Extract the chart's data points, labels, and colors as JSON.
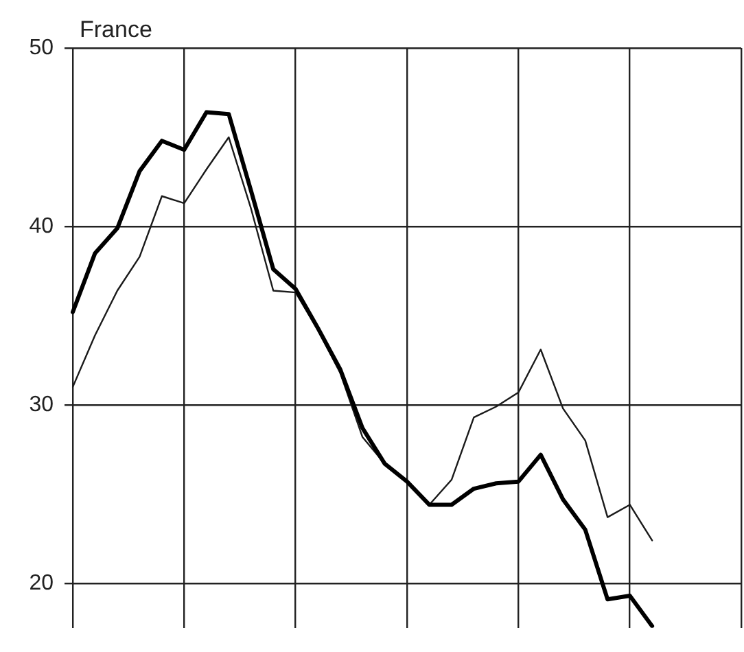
{
  "chart_data": {
    "type": "line",
    "title": "France",
    "categories": [
      null,
      null,
      null,
      null,
      null,
      null,
      null,
      null,
      null,
      null,
      null,
      null,
      null,
      null,
      null,
      null,
      null,
      null,
      null,
      null,
      null,
      null,
      null,
      null,
      null,
      null,
      null,
      null,
      null,
      null,
      null
    ],
    "ylim": [
      17.5,
      50
    ],
    "yticks": [
      20,
      30,
      40,
      50
    ],
    "grid": true,
    "legend": false,
    "tick_labels": "y",
    "marker": "none",
    "line_style": "solid",
    "series": [
      {
        "color": "#000000",
        "values": [
          35.2,
          38.5,
          39.9,
          43.1,
          44.8,
          44.3,
          46.4,
          46.3,
          42.0,
          37.6,
          36.5,
          34.3,
          32.0,
          28.7,
          26.7,
          25.7,
          24.4,
          24.4,
          25.3,
          25.6,
          25.7,
          27.2,
          24.7,
          23.0,
          19.1,
          19.3,
          17.6,
          null,
          null,
          null,
          null
        ]
      },
      {
        "color": "#1a1a1a",
        "values": [
          31.0,
          33.9,
          36.4,
          38.3,
          41.7,
          41.3,
          43.2,
          45.0,
          41.0,
          36.4,
          36.3,
          34.2,
          31.8,
          28.2,
          26.7,
          25.7,
          24.4,
          25.8,
          29.3,
          29.9,
          30.7,
          33.1,
          29.8,
          28.0,
          23.7,
          24.4,
          22.4,
          null,
          null,
          null,
          null
        ]
      }
    ]
  }
}
